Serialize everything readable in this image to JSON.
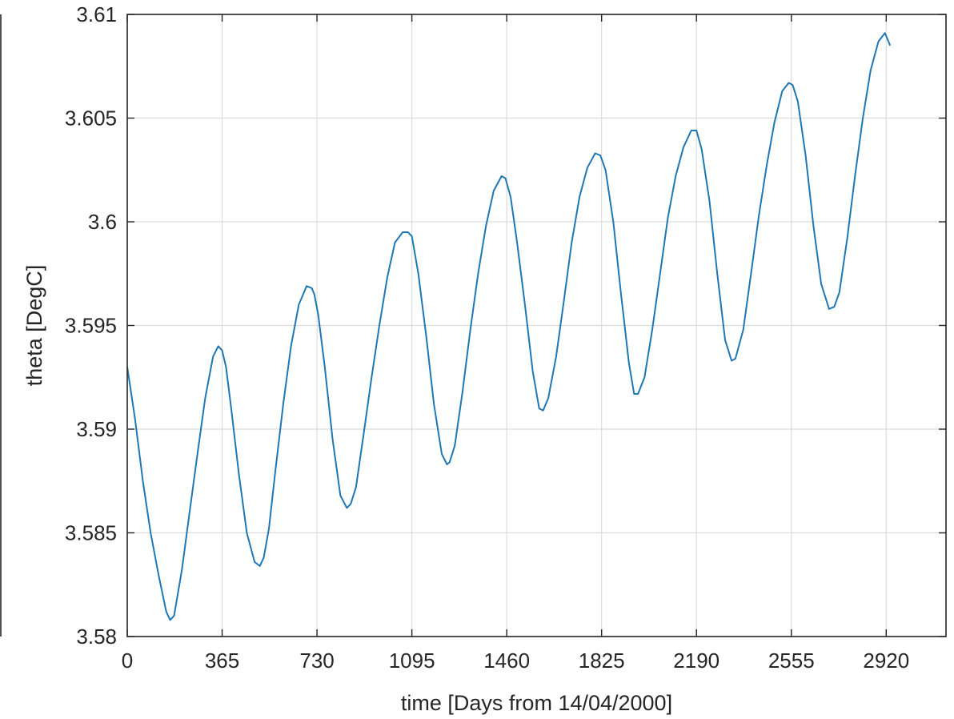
{
  "chart_data": {
    "type": "line",
    "title": "",
    "xlabel": "time [Days from 14/04/2000]",
    "ylabel": "theta [DegC]",
    "xlim": [
      0,
      3150
    ],
    "ylim": [
      3.58,
      3.61
    ],
    "xticks": [
      0,
      365,
      730,
      1095,
      1460,
      1825,
      2190,
      2555,
      2920
    ],
    "xtick_labels": [
      "0",
      "365",
      "730",
      "1095",
      "1460",
      "1825",
      "2190",
      "2555",
      "2920"
    ],
    "yticks": [
      3.58,
      3.585,
      3.59,
      3.595,
      3.6,
      3.605,
      3.61
    ],
    "ytick_labels": [
      "3.58",
      "3.585",
      "3.59",
      "3.595",
      "3.6",
      "3.605",
      "3.61"
    ],
    "grid": true,
    "series": [
      {
        "color": "#1f77b4",
        "x": [
          0,
          30,
          60,
          90,
          120,
          150,
          165,
          180,
          210,
          240,
          270,
          300,
          330,
          350,
          365,
          380,
          400,
          430,
          460,
          490,
          510,
          525,
          545,
          570,
          600,
          630,
          660,
          690,
          710,
          720,
          735,
          760,
          790,
          820,
          845,
          860,
          880,
          910,
          940,
          970,
          1000,
          1030,
          1060,
          1080,
          1095,
          1120,
          1150,
          1180,
          1210,
          1230,
          1240,
          1260,
          1290,
          1320,
          1350,
          1380,
          1410,
          1440,
          1455,
          1475,
          1500,
          1530,
          1560,
          1585,
          1600,
          1620,
          1650,
          1680,
          1710,
          1740,
          1770,
          1800,
          1820,
          1840,
          1870,
          1900,
          1930,
          1950,
          1965,
          1990,
          2020,
          2050,
          2080,
          2110,
          2140,
          2170,
          2190,
          2210,
          2240,
          2270,
          2300,
          2325,
          2340,
          2370,
          2400,
          2430,
          2460,
          2490,
          2520,
          2545,
          2560,
          2580,
          2610,
          2640,
          2670,
          2700,
          2720,
          2740,
          2770,
          2800,
          2830,
          2860,
          2890,
          2915,
          2935
        ],
        "values": [
          3.593,
          3.5905,
          3.5875,
          3.585,
          3.583,
          3.5812,
          3.5808,
          3.581,
          3.5832,
          3.586,
          3.5888,
          3.5915,
          3.5935,
          3.594,
          3.5938,
          3.593,
          3.591,
          3.5878,
          3.585,
          3.5836,
          3.5834,
          3.5838,
          3.5852,
          3.588,
          3.5912,
          3.594,
          3.596,
          3.5969,
          3.5968,
          3.5965,
          3.5955,
          3.593,
          3.5895,
          3.5868,
          3.5862,
          3.5864,
          3.5872,
          3.5898,
          3.5925,
          3.595,
          3.5973,
          3.599,
          3.5995,
          3.5995,
          3.5993,
          3.5975,
          3.5945,
          3.5912,
          3.5888,
          3.5883,
          3.5884,
          3.5892,
          3.5918,
          3.5948,
          3.5975,
          3.5998,
          3.6015,
          3.6022,
          3.6021,
          3.6012,
          3.599,
          3.596,
          3.5928,
          3.591,
          3.5909,
          3.5915,
          3.5935,
          3.5962,
          3.599,
          3.6012,
          3.6026,
          3.6033,
          3.6032,
          3.6025,
          3.6,
          3.5965,
          3.5932,
          3.5917,
          3.5917,
          3.5925,
          3.5948,
          3.5975,
          3.6002,
          3.6022,
          3.6036,
          3.6044,
          3.6044,
          3.6035,
          3.601,
          3.5975,
          3.5943,
          3.5933,
          3.5934,
          3.5948,
          3.5975,
          3.6003,
          3.6027,
          3.6048,
          3.6063,
          3.6067,
          3.6066,
          3.6058,
          3.6032,
          3.5998,
          3.597,
          3.5958,
          3.5959,
          3.5966,
          3.5992,
          3.6022,
          3.605,
          3.6073,
          3.6087,
          3.6091,
          3.6085
        ]
      }
    ]
  }
}
